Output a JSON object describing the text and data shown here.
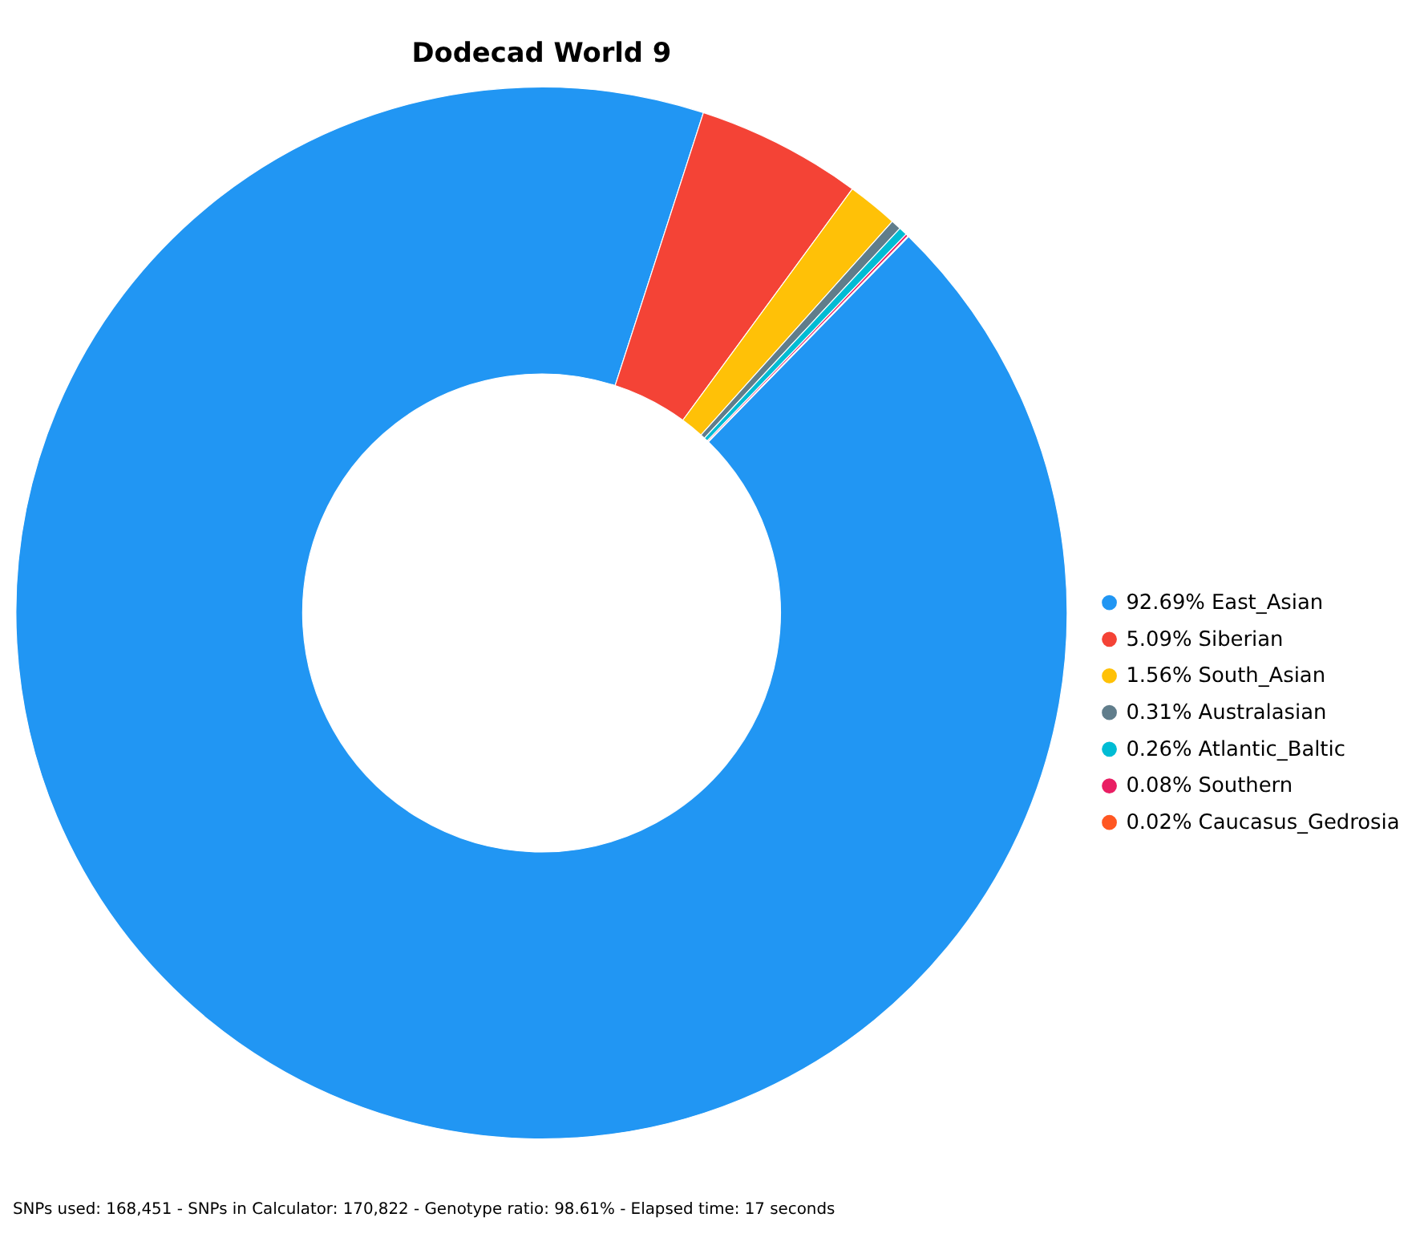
{
  "chart_data": {
    "type": "donut",
    "title": "Dodecad World 9",
    "categories": [
      "East_Asian",
      "Siberian",
      "South_Asian",
      "Australasian",
      "Atlantic_Baltic",
      "Southern",
      "Caucasus_Gedrosia"
    ],
    "values": [
      92.69,
      5.09,
      1.56,
      0.31,
      0.26,
      0.08,
      0.02
    ],
    "value_labels": [
      "92.69%",
      "5.09%",
      "1.56%",
      "0.31%",
      "0.26%",
      "0.08%",
      "0.02%"
    ],
    "colors": [
      "#2196f3",
      "#f44336",
      "#ffc107",
      "#607d8b",
      "#00bcd4",
      "#e91e63",
      "#ff5722"
    ],
    "legend": "right",
    "annotations": [
      "SNPs used: 168,451 - SNPs in Calculator: 170,822 - Genotype ratio: 98.61% - Elapsed time: 17 seconds"
    ]
  }
}
